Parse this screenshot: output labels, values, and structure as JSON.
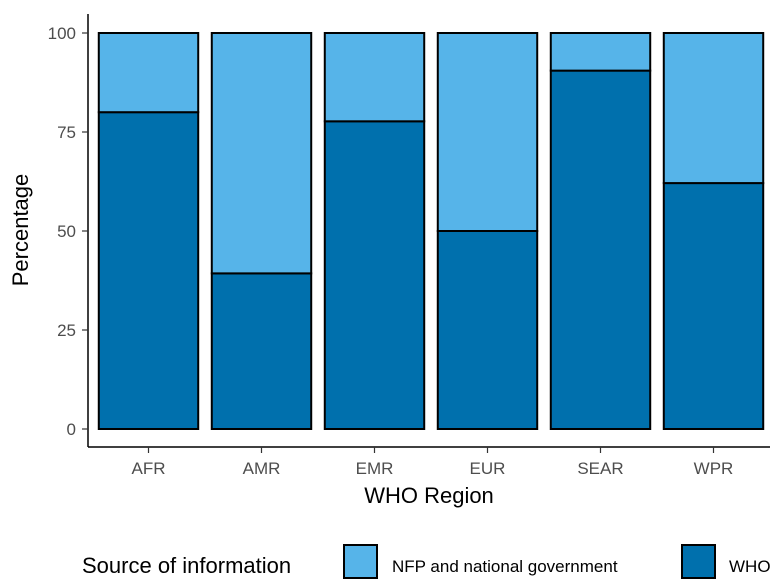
{
  "chart_data": {
    "type": "bar",
    "stacked": true,
    "categories": [
      "AFR",
      "AMR",
      "EMR",
      "EUR",
      "SEAR",
      "WPR"
    ],
    "series": [
      {
        "name": "WHO",
        "color": "#0070ad",
        "values": [
          80,
          39.3,
          77.7,
          50,
          90.5,
          62.1
        ]
      },
      {
        "name": "NFP and national government",
        "color": "#56b4e9",
        "values": [
          20,
          60.7,
          22.3,
          50,
          9.5,
          37.9
        ]
      }
    ],
    "xlabel": "WHO Region",
    "ylabel": "Percentage",
    "ylim": [
      0,
      100
    ],
    "yticks": [
      0,
      25,
      50,
      75,
      100
    ],
    "legend": {
      "title": "Source of information",
      "position": "bottom",
      "order": [
        "NFP and national government",
        "WHO"
      ]
    },
    "grid": false
  }
}
